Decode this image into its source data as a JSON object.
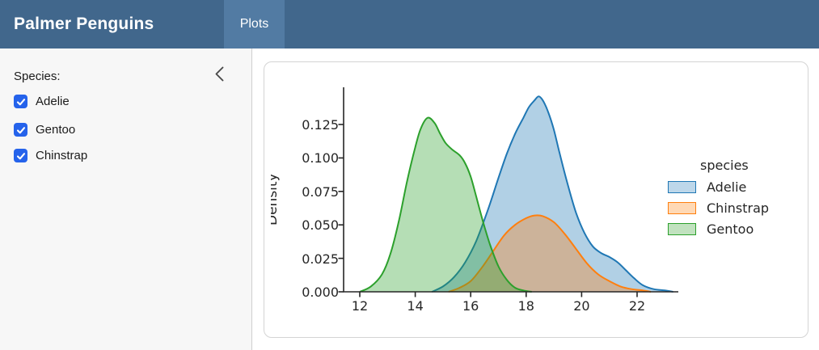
{
  "header": {
    "title": "Palmer Penguins",
    "tab": "Plots"
  },
  "sidebar": {
    "label": "Species:",
    "items": [
      {
        "label": "Adelie",
        "checked": true
      },
      {
        "label": "Gentoo",
        "checked": true
      },
      {
        "label": "Chinstrap",
        "checked": true
      }
    ]
  },
  "colors": {
    "header_bg": "#41678c",
    "active_tab_bg": "#527ba3",
    "sidebar_bg": "#f7f7f7",
    "checkbox_blue": "#2563eb",
    "axis": "#262626"
  },
  "chart_data": {
    "type": "area",
    "subtype": "kde-density",
    "title": "",
    "xlabel": "",
    "ylabel": "Density",
    "xlim": [
      11.2,
      23.4
    ],
    "ylim": [
      0,
      0.153
    ],
    "grid": false,
    "xticks": [
      "12",
      "14",
      "16",
      "18",
      "20",
      "22"
    ],
    "yticks": [
      "0.000",
      "0.025",
      "0.050",
      "0.075",
      "0.100",
      "0.125"
    ],
    "legend": {
      "title": "species",
      "position": "right",
      "entries": [
        "Adelie",
        "Chinstrap",
        "Gentoo"
      ]
    },
    "series": [
      {
        "name": "Adelie",
        "line_color": "#1f77b4",
        "fill_tint": "#bdd7ea",
        "x": [
          14.6,
          15.0,
          15.4,
          15.8,
          16.2,
          16.6,
          17.0,
          17.3,
          17.6,
          17.9,
          18.1,
          18.3,
          18.45,
          18.6,
          18.8,
          19.0,
          19.2,
          19.5,
          19.8,
          20.1,
          20.4,
          20.7,
          21.0,
          21.3,
          21.6,
          21.9,
          22.2,
          22.6,
          23.0,
          23.3
        ],
        "density": [
          0.0,
          0.004,
          0.011,
          0.022,
          0.038,
          0.06,
          0.085,
          0.103,
          0.118,
          0.13,
          0.138,
          0.143,
          0.146,
          0.143,
          0.134,
          0.121,
          0.104,
          0.08,
          0.059,
          0.044,
          0.034,
          0.029,
          0.026,
          0.022,
          0.016,
          0.01,
          0.005,
          0.002,
          0.001,
          0.0
        ]
      },
      {
        "name": "Chinstrap",
        "line_color": "#ff7f0e",
        "fill_tint": "#ffd9b5",
        "x": [
          15.2,
          15.6,
          16.0,
          16.4,
          16.8,
          17.2,
          17.6,
          18.0,
          18.3,
          18.6,
          19.0,
          19.4,
          19.8,
          20.2,
          20.6,
          21.0,
          21.4,
          21.8,
          22.2,
          22.5
        ],
        "density": [
          0.0,
          0.003,
          0.008,
          0.018,
          0.03,
          0.042,
          0.05,
          0.055,
          0.057,
          0.0565,
          0.052,
          0.043,
          0.032,
          0.021,
          0.013,
          0.008,
          0.004,
          0.002,
          0.001,
          0.0
        ]
      },
      {
        "name": "Gentoo",
        "line_color": "#2ca02c",
        "fill_tint": "#c1e2bf",
        "x": [
          12.0,
          12.4,
          12.8,
          13.1,
          13.4,
          13.7,
          14.0,
          14.2,
          14.45,
          14.7,
          14.9,
          15.1,
          15.35,
          15.6,
          15.8,
          16.0,
          16.2,
          16.45,
          16.7,
          17.0,
          17.3,
          17.6,
          17.9,
          18.2
        ],
        "density": [
          0.0,
          0.004,
          0.013,
          0.028,
          0.052,
          0.082,
          0.108,
          0.122,
          0.13,
          0.126,
          0.118,
          0.111,
          0.106,
          0.102,
          0.096,
          0.086,
          0.071,
          0.052,
          0.035,
          0.019,
          0.009,
          0.003,
          0.001,
          0.0
        ]
      }
    ]
  }
}
